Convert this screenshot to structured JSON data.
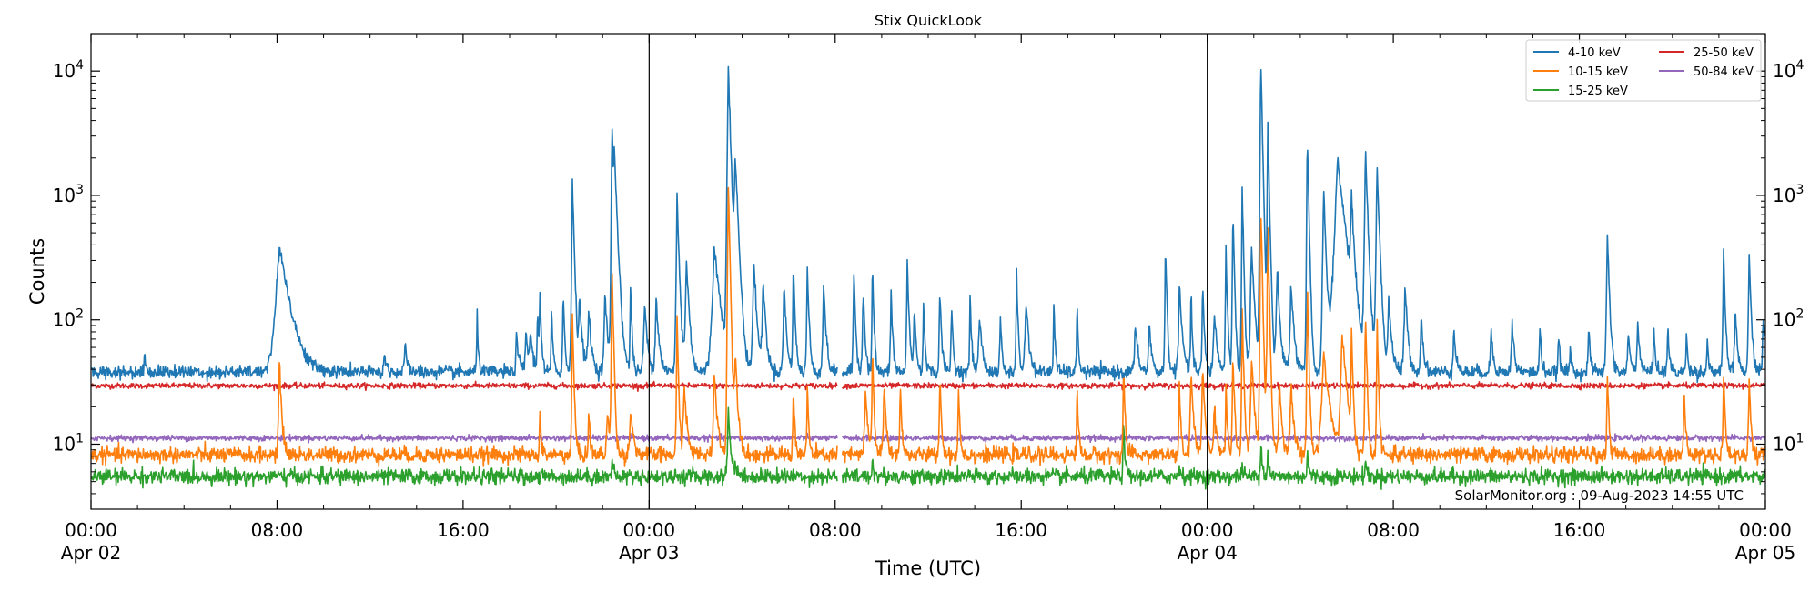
{
  "chart_data": {
    "type": "line",
    "title": "Stix QuickLook",
    "xlabel": "Time (UTC)",
    "ylabel": "Counts",
    "y_scale": "log",
    "ylim": [
      3,
      20000
    ],
    "xlim_hours": [
      0,
      72
    ],
    "grid": false,
    "legend_position": "top-right",
    "credit": "SolarMonitor.org : 09-Aug-2023 14:55 UTC",
    "x_ticks": [
      {
        "hour": 0,
        "time": "00:00",
        "date": "Apr 02"
      },
      {
        "hour": 8,
        "time": "08:00",
        "date": ""
      },
      {
        "hour": 16,
        "time": "16:00",
        "date": ""
      },
      {
        "hour": 24,
        "time": "00:00",
        "date": "Apr 03"
      },
      {
        "hour": 32,
        "time": "08:00",
        "date": ""
      },
      {
        "hour": 40,
        "time": "16:00",
        "date": ""
      },
      {
        "hour": 48,
        "time": "00:00",
        "date": "Apr 04"
      },
      {
        "hour": 56,
        "time": "08:00",
        "date": ""
      },
      {
        "hour": 64,
        "time": "16:00",
        "date": ""
      },
      {
        "hour": 72,
        "time": "00:00",
        "date": "Apr 05"
      }
    ],
    "y_ticks": [
      {
        "value": 10,
        "base": "10",
        "exp": "1"
      },
      {
        "value": 100,
        "base": "10",
        "exp": "2"
      },
      {
        "value": 1000,
        "base": "10",
        "exp": "3"
      },
      {
        "value": 10000,
        "base": "10",
        "exp": "4"
      }
    ],
    "day_markers_hours": [
      24,
      48
    ],
    "data_gap_hours": [
      32.1,
      32.3
    ],
    "series": [
      {
        "name": "4-10 keV",
        "color": "#1f77b4",
        "baseline": 38,
        "noise": 0.06,
        "peaks": [
          [
            8.1,
            400,
            0.35
          ],
          [
            2.3,
            58,
            0.05
          ],
          [
            12.6,
            52,
            0.1
          ],
          [
            13.5,
            60,
            0.1
          ],
          [
            16.6,
            110,
            0.05
          ],
          [
            18.3,
            80,
            0.08
          ],
          [
            18.9,
            75,
            0.1
          ],
          [
            19.2,
            120,
            0.05
          ],
          [
            19.3,
            180,
            0.05
          ],
          [
            18.7,
            80,
            0.1
          ],
          [
            19.8,
            120,
            0.05
          ],
          [
            20.3,
            180,
            0.05
          ],
          [
            20.7,
            1400,
            0.06
          ],
          [
            21,
            150,
            0.1
          ],
          [
            21.4,
            120,
            0.1
          ],
          [
            22.1,
            160,
            0.1
          ],
          [
            22.4,
            3900,
            0.05
          ],
          [
            22.5,
            2000,
            0.1
          ],
          [
            23.2,
            200,
            0.05
          ],
          [
            23.8,
            140,
            0.1
          ],
          [
            24.3,
            150,
            0.1
          ],
          [
            25.2,
            1000,
            0.07
          ],
          [
            25.6,
            300,
            0.1
          ],
          [
            26.8,
            400,
            0.2
          ],
          [
            27.4,
            12000,
            0.07
          ],
          [
            27.7,
            2000,
            0.1
          ],
          [
            28.5,
            300,
            0.1
          ],
          [
            28.9,
            200,
            0.1
          ],
          [
            29.8,
            200,
            0.08
          ],
          [
            30.2,
            280,
            0.06
          ],
          [
            30.8,
            270,
            0.06
          ],
          [
            31.5,
            200,
            0.08
          ],
          [
            32.8,
            250,
            0.06
          ],
          [
            33.2,
            200,
            0.06
          ],
          [
            33.6,
            280,
            0.05
          ],
          [
            34.4,
            170,
            0.06
          ],
          [
            35.1,
            300,
            0.06
          ],
          [
            35.4,
            140,
            0.06
          ],
          [
            35.8,
            130,
            0.06
          ],
          [
            36.5,
            180,
            0.06
          ],
          [
            37,
            130,
            0.06
          ],
          [
            37.8,
            140,
            0.06
          ],
          [
            38.2,
            110,
            0.1
          ],
          [
            39.1,
            120,
            0.05
          ],
          [
            39.8,
            250,
            0.05
          ],
          [
            40.2,
            150,
            0.1
          ],
          [
            41.4,
            140,
            0.05
          ],
          [
            42.4,
            130,
            0.05
          ],
          [
            44.9,
            90,
            0.1
          ],
          [
            45.5,
            100,
            0.08
          ],
          [
            46.2,
            430,
            0.05
          ],
          [
            46.8,
            180,
            0.1
          ],
          [
            47.3,
            160,
            0.05
          ],
          [
            47.8,
            190,
            0.06
          ],
          [
            48.3,
            120,
            0.1
          ],
          [
            48.8,
            400,
            0.05
          ],
          [
            49.1,
            800,
            0.05
          ],
          [
            49.5,
            1100,
            0.05
          ],
          [
            49.9,
            400,
            0.1
          ],
          [
            50.3,
            13000,
            0.05
          ],
          [
            50.6,
            4000,
            0.05
          ],
          [
            51,
            250,
            0.1
          ],
          [
            51.6,
            200,
            0.1
          ],
          [
            52.3,
            3000,
            0.05
          ],
          [
            53,
            1200,
            0.08
          ],
          [
            53.6,
            2000,
            0.25
          ],
          [
            54.2,
            800,
            0.1
          ],
          [
            54.8,
            2300,
            0.08
          ],
          [
            55.3,
            1800,
            0.08
          ],
          [
            55.8,
            150,
            0.1
          ],
          [
            56.5,
            180,
            0.1
          ],
          [
            57.2,
            110,
            0.08
          ],
          [
            58.6,
            90,
            0.08
          ],
          [
            60.2,
            85,
            0.08
          ],
          [
            61.1,
            100,
            0.08
          ],
          [
            62.3,
            90,
            0.06
          ],
          [
            63.1,
            75,
            0.06
          ],
          [
            63.6,
            60,
            0.06
          ],
          [
            64.4,
            90,
            0.06
          ],
          [
            65.2,
            530,
            0.07
          ],
          [
            66.1,
            80,
            0.08
          ],
          [
            66.5,
            100,
            0.08
          ],
          [
            67.2,
            90,
            0.06
          ],
          [
            67.8,
            90,
            0.06
          ],
          [
            68.6,
            75,
            0.06
          ],
          [
            69.5,
            70,
            0.06
          ],
          [
            70.2,
            330,
            0.06
          ],
          [
            70.7,
            120,
            0.08
          ],
          [
            71.3,
            320,
            0.07
          ],
          [
            71.9,
            110,
            0.06
          ],
          [
            72,
            80,
            0.1
          ]
        ]
      },
      {
        "name": "10-15 keV",
        "color": "#ff7f0e",
        "baseline": 8.2,
        "noise": 0.07,
        "peaks": [
          [
            8.1,
            45,
            0.08
          ],
          [
            19.3,
            18,
            0.05
          ],
          [
            20.7,
            110,
            0.05
          ],
          [
            21.4,
            20,
            0.05
          ],
          [
            22.2,
            18,
            0.1
          ],
          [
            22.4,
            280,
            0.05
          ],
          [
            23.2,
            20,
            0.1
          ],
          [
            25.2,
            100,
            0.05
          ],
          [
            25.5,
            30,
            0.1
          ],
          [
            26.8,
            40,
            0.1
          ],
          [
            27.4,
            1500,
            0.05
          ],
          [
            27.7,
            50,
            0.1
          ],
          [
            30.2,
            30,
            0.05
          ],
          [
            30.8,
            30,
            0.05
          ],
          [
            33.3,
            25,
            0.1
          ],
          [
            33.6,
            60,
            0.05
          ],
          [
            34.1,
            30,
            0.08
          ],
          [
            34.8,
            35,
            0.05
          ],
          [
            36.5,
            40,
            0.05
          ],
          [
            37.3,
            30,
            0.05
          ],
          [
            42.4,
            30,
            0.05
          ],
          [
            44.4,
            45,
            0.05
          ],
          [
            46.8,
            30,
            0.05
          ],
          [
            47.3,
            40,
            0.08
          ],
          [
            47.8,
            45,
            0.08
          ],
          [
            48.3,
            20,
            0.1
          ],
          [
            48.8,
            30,
            0.05
          ],
          [
            49.1,
            60,
            0.05
          ],
          [
            49.5,
            120,
            0.05
          ],
          [
            49.9,
            50,
            0.1
          ],
          [
            50.3,
            900,
            0.05
          ],
          [
            50.6,
            600,
            0.05
          ],
          [
            51.1,
            30,
            0.1
          ],
          [
            51.6,
            30,
            0.1
          ],
          [
            52.3,
            180,
            0.05
          ],
          [
            53,
            55,
            0.2
          ],
          [
            53.8,
            80,
            0.15
          ],
          [
            54.2,
            80,
            0.05
          ],
          [
            54.8,
            120,
            0.05
          ],
          [
            55.3,
            100,
            0.05
          ],
          [
            65.2,
            40,
            0.05
          ],
          [
            68.5,
            30,
            0.05
          ],
          [
            70.2,
            35,
            0.06
          ],
          [
            71.3,
            35,
            0.06
          ]
        ]
      },
      {
        "name": "15-25 keV",
        "color": "#2ca02c",
        "baseline": 5.5,
        "noise": 0.07,
        "peaks": [
          [
            22.4,
            8,
            0.05
          ],
          [
            27.4,
            20,
            0.08
          ],
          [
            27.7,
            7,
            0.1
          ],
          [
            33.6,
            8,
            0.05
          ],
          [
            44.4,
            16,
            0.05
          ],
          [
            46.8,
            7,
            0.05
          ],
          [
            49.5,
            7,
            0.05
          ],
          [
            50.3,
            12,
            0.05
          ],
          [
            50.6,
            9,
            0.05
          ],
          [
            52.3,
            9,
            0.05
          ],
          [
            54.8,
            8,
            0.05
          ]
        ]
      },
      {
        "name": "25-50 keV",
        "color": "#d62728",
        "baseline": 29.5,
        "noise": 0.025,
        "peaks": []
      },
      {
        "name": "50-84 keV",
        "color": "#9467bd",
        "baseline": 11.2,
        "noise": 0.025,
        "peaks": []
      }
    ]
  }
}
